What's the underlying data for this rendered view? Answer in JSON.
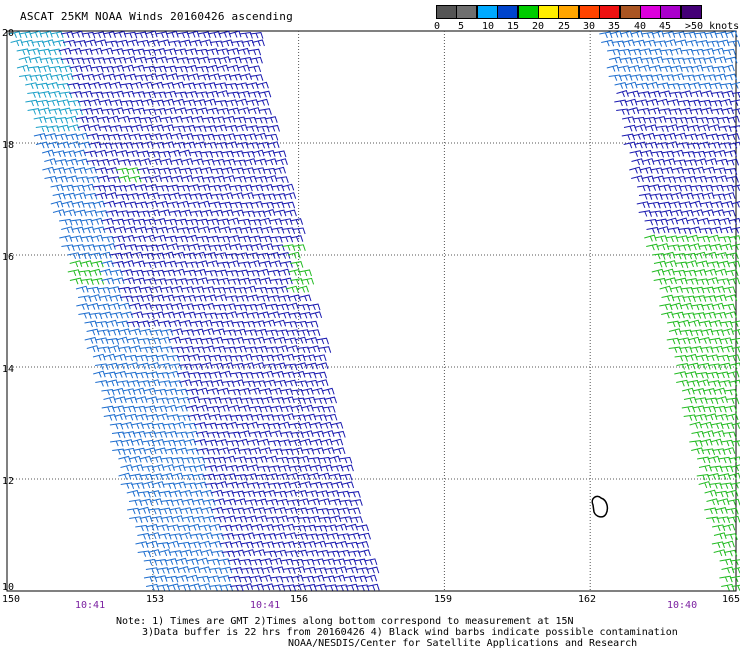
{
  "title": "ASCAT 25KM NOAA Winds 20160426 ascending",
  "colorbar": {
    "colors": [
      "#555555",
      "#6f6f6f",
      "#00aaff",
      "#0044cc",
      "#00cc00",
      "#ffee00",
      "#ffa500",
      "#ff4400",
      "#ee1111",
      "#aa5522",
      "#dd00dd",
      "#aa00cc",
      "#440077"
    ],
    "labels": [
      "0",
      "5",
      "10",
      "15",
      "20",
      "25",
      "30",
      "35",
      "40",
      "45",
      ">50 knots"
    ]
  },
  "map": {
    "lon_min": 150,
    "lon_max": 165,
    "lat_min": 10,
    "lat_max": 20,
    "lon_ticks": [
      "150",
      "153",
      "156",
      "159",
      "162",
      "165"
    ],
    "lat_ticks": [
      "20",
      "18",
      "16",
      "14",
      "12",
      "10"
    ]
  },
  "times": [
    "10:41",
    "10:41",
    "10:40"
  ],
  "notes": [
    "Note: 1) Times are GMT 2)Times along bottom correspond to measurement at 15N",
    "3)Data buffer is 22 hrs from 20160426 4) Black wind barbs indicate possible contamination",
    "NOAA/NESDIS/Center for Satellite Applications and Research"
  ],
  "colors": {
    "dark_blue": "#1a1ab0",
    "mid_blue": "#1e6ecf",
    "cyan": "#1aa0c8",
    "green": "#22bb22",
    "time_purple": "#7a1fa0"
  }
}
